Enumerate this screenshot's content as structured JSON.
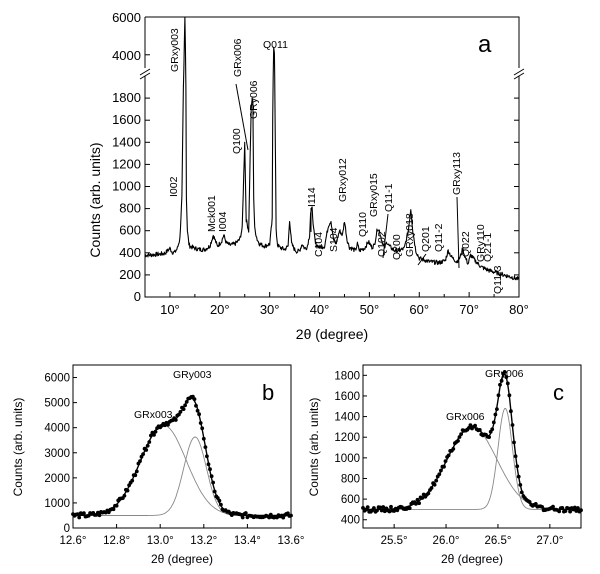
{
  "chart_data": [
    {
      "id": "a",
      "type": "line",
      "panel_label": "a",
      "xlabel": "2θ (degree)",
      "ylabel": "Counts (arb. units)",
      "x_ticks": [
        "10°",
        "20°",
        "30°",
        "40°",
        "50°",
        "60°",
        "70°",
        "80°"
      ],
      "x_tick_values": [
        10,
        20,
        30,
        40,
        50,
        60,
        70,
        80
      ],
      "xlim": [
        5,
        80
      ],
      "y_ticks_lower": [
        "0",
        "200",
        "400",
        "600",
        "800",
        "1000",
        "1200",
        "1400",
        "1600",
        "1800"
      ],
      "y_ticks_lower_values": [
        0,
        200,
        400,
        600,
        800,
        1000,
        1200,
        1400,
        1600,
        1800
      ],
      "y_ticks_upper": [
        "4000",
        "6000"
      ],
      "y_ticks_upper_values": [
        4000,
        6000
      ],
      "ylim_lower": [
        0,
        2000
      ],
      "ylim_upper": [
        3300,
        6000
      ],
      "axis_break": true,
      "series": [
        {
          "x": [
            5,
            6,
            7,
            8,
            9,
            10,
            10.5,
            11,
            11.5,
            12,
            12.4,
            12.7,
            12.9,
            13.0,
            13.1,
            13.2,
            13.3,
            13.5,
            13.8,
            14,
            15,
            16,
            17,
            18,
            18.7,
            19.1,
            19.5,
            20.3,
            20.8,
            21.3,
            22,
            23,
            24,
            24.5,
            25.0,
            25.3,
            25.8,
            26.1,
            26.3,
            26.5,
            26.64,
            26.8,
            27.0,
            27.5,
            28,
            29,
            30,
            30.5,
            30.7,
            30.8,
            30.95,
            31.1,
            31.3,
            31.6,
            32,
            33,
            33.7,
            34,
            34.4,
            35,
            35.5,
            36,
            36.5,
            37,
            37.5,
            38,
            38.2,
            38.5,
            38.8,
            39.2,
            40,
            41,
            41.8,
            42.3,
            42.8,
            43.3,
            44,
            44.6,
            45.0,
            45.5,
            46.0,
            46.5,
            47.2,
            47.6,
            48,
            49,
            49.8,
            50.5,
            51,
            51.6,
            52,
            52.5,
            53,
            53.5,
            54,
            54.5,
            55,
            56,
            57,
            57.8,
            58.3,
            58.7,
            59.3,
            60,
            62,
            64,
            65.2,
            65.8,
            66.5,
            67.5,
            68.2,
            68.7,
            69.2,
            69.8,
            70.3,
            71,
            71.8,
            72.5,
            74,
            75.5,
            77,
            78.5,
            80
          ],
          "y": [
            380,
            380,
            385,
            388,
            395,
            440,
            405,
            405,
            440,
            530,
            900,
            1900,
            4800,
            6000,
            4500,
            1900,
            900,
            600,
            480,
            460,
            440,
            430,
            430,
            460,
            560,
            510,
            460,
            500,
            560,
            490,
            470,
            480,
            520,
            620,
            1400,
            700,
            600,
            1300,
            1700,
            1800,
            1750,
            900,
            620,
            520,
            480,
            460,
            480,
            700,
            2500,
            4400,
            4100,
            1500,
            600,
            470,
            450,
            430,
            460,
            700,
            480,
            430,
            410,
            420,
            480,
            440,
            450,
            560,
            760,
            800,
            620,
            480,
            450,
            460,
            650,
            690,
            520,
            480,
            600,
            560,
            690,
            520,
            450,
            440,
            420,
            480,
            420,
            440,
            500,
            450,
            470,
            620,
            600,
            510,
            440,
            500,
            460,
            440,
            420,
            420,
            440,
            600,
            800,
            600,
            420,
            350,
            320,
            310,
            330,
            420,
            360,
            320,
            360,
            440,
            360,
            300,
            380,
            340,
            300,
            270,
            240,
            220,
            200,
            180,
            160
          ]
        }
      ],
      "annotations": [
        "I002",
        "GRxy003",
        "Mck001",
        "I004",
        "Q100",
        "GRx006",
        "GRy006",
        "Q011",
        "I114",
        "C104",
        "S104",
        "GRxy012",
        "Q110",
        "GRxy015",
        "Q102",
        "Q11-1",
        "Q200",
        "GRxy018",
        "Q201",
        "Q11-2",
        "Q022",
        "GRy110",
        "GRxy113",
        "Q21-1",
        "Q11-3"
      ]
    },
    {
      "id": "b",
      "type": "scatter",
      "panel_label": "b",
      "xlabel": "2θ (degree)",
      "ylabel": "Counts (arb. units)",
      "x_ticks": [
        "12.6°",
        "12.8°",
        "13.0°",
        "13.2°",
        "13.4°",
        "13.6°"
      ],
      "x_tick_values": [
        12.6,
        12.8,
        13.0,
        13.2,
        13.4,
        13.6
      ],
      "xlim": [
        12.6,
        13.6
      ],
      "y_ticks": [
        "0",
        "1000",
        "2000",
        "3000",
        "4000",
        "5000",
        "6000"
      ],
      "y_tick_values": [
        0,
        1000,
        2000,
        3000,
        4000,
        5000,
        6000
      ],
      "ylim": [
        0,
        6500
      ],
      "baseline": 500,
      "components": [
        {
          "name": "GRx003",
          "center": 13.015,
          "height": 3600,
          "sigma": 0.105
        },
        {
          "name": "GRy003",
          "center": 13.16,
          "height": 3130,
          "sigma": 0.052
        }
      ],
      "annotations": [
        "GRx003",
        "GRy003"
      ]
    },
    {
      "id": "c",
      "type": "scatter",
      "panel_label": "c",
      "xlabel": "2θ (degree)",
      "ylabel": "Counts (arb. units)",
      "x_ticks": [
        "25.5°",
        "26.0°",
        "26.5°",
        "27.0°"
      ],
      "x_tick_values": [
        25.5,
        26.0,
        26.5,
        27.0
      ],
      "xlim": [
        25.2,
        27.3
      ],
      "y_ticks": [
        "400",
        "600",
        "800",
        "1000",
        "1200",
        "1400",
        "1600",
        "1800"
      ],
      "y_tick_values": [
        400,
        600,
        800,
        1000,
        1200,
        1400,
        1600,
        1800
      ],
      "ylim": [
        320,
        1900
      ],
      "baseline": 500,
      "components": [
        {
          "name": "GRx006",
          "center": 26.25,
          "height": 800,
          "sigma": 0.24
        },
        {
          "name": "GRy006",
          "center": 26.57,
          "height": 980,
          "sigma": 0.07
        }
      ],
      "annotations": [
        "GRx006",
        "GRy006"
      ]
    }
  ]
}
